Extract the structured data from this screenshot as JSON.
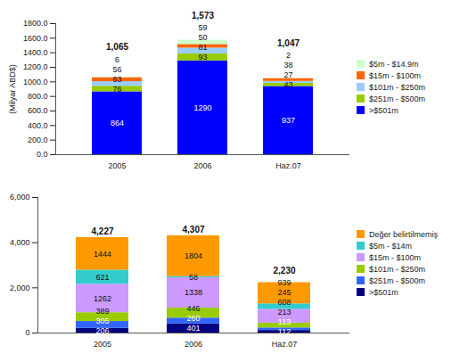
{
  "chart_data": [
    {
      "type": "bar",
      "stacked": true,
      "data_labels": true,
      "y_label": "(Milyar ABD$)",
      "categories": [
        "2005",
        "2006",
        "Haz.07"
      ],
      "series": [
        {
          "name": ">$501m",
          "color": "#0000ff",
          "values": [
            864,
            1290,
            937
          ]
        },
        {
          "name": "$251m - $500m",
          "color": "#99cc00",
          "values": [
            76,
            93,
            43
          ]
        },
        {
          "name": "$101m - $250m",
          "color": "#99ccff",
          "values": [
            63,
            81,
            27
          ]
        },
        {
          "name": "$15m - $100m",
          "color": "#ff6600",
          "values": [
            56,
            50,
            38
          ]
        },
        {
          "name": "$5m - $14.9m",
          "color": "#ccffcc",
          "values": [
            6,
            59,
            2
          ]
        }
      ],
      "totals": [
        1065,
        1573,
        1047
      ],
      "total_labels": [
        "1,065",
        "1,573",
        "1,047"
      ],
      "ylim": [
        0,
        1800
      ],
      "yticks": [
        {
          "value": 0,
          "label": "0.0"
        },
        {
          "value": 200,
          "label": "200.0"
        },
        {
          "value": 400,
          "label": "400.0"
        },
        {
          "value": 600,
          "label": "600.0"
        },
        {
          "value": 800,
          "label": "800.0"
        },
        {
          "value": 1000,
          "label": "1000.0"
        },
        {
          "value": 1200,
          "label": "1200.0"
        },
        {
          "value": 1400,
          "label": "1400.0"
        },
        {
          "value": 1600,
          "label": "1600.0"
        },
        {
          "value": 1800,
          "label": "1800.0"
        }
      ]
    },
    {
      "type": "bar",
      "stacked": true,
      "data_labels": true,
      "categories": [
        "2005",
        "2006",
        "Haz.07"
      ],
      "series": [
        {
          "name": ">$501m",
          "color": "#000080",
          "values": [
            206,
            401,
            112
          ]
        },
        {
          "name": "$251m - $500m",
          "color": "#3366ff",
          "values": [
            305,
            260,
            113
          ]
        },
        {
          "name": "$101m - $250m",
          "color": "#99cc00",
          "values": [
            389,
            446,
            213
          ]
        },
        {
          "name": "$15m - $100m",
          "color": "#cc99ff",
          "values": [
            1262,
            1338,
            608
          ]
        },
        {
          "name": "$5m - $14m",
          "color": "#33cccc",
          "values": [
            621,
            58,
            245
          ]
        },
        {
          "name": "Değer belirtilmemiş",
          "color": "#ff9900",
          "values": [
            1444,
            1804,
            939
          ]
        }
      ],
      "totals": [
        4227,
        4307,
        2230
      ],
      "total_labels": [
        "4,227",
        "4,307",
        "2,230"
      ],
      "ylim": [
        0,
        6000
      ],
      "yticks": [
        0,
        {
          "value": 2000,
          "label": "2,000"
        },
        {
          "value": 4000,
          "label": "4,000"
        },
        {
          "value": 6000,
          "label": "6,000"
        }
      ]
    }
  ]
}
